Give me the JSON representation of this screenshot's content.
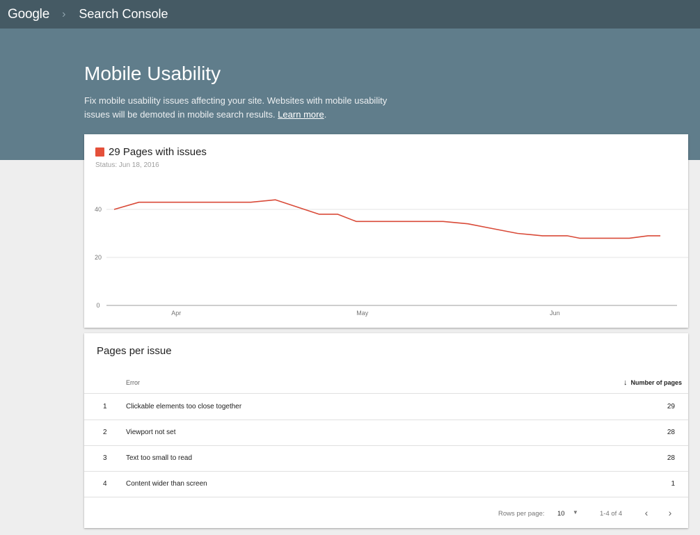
{
  "header": {
    "logo": "Google",
    "separator": "›",
    "product": "Search Console"
  },
  "hero": {
    "title": "Mobile Usability",
    "description": "Fix mobile usability issues affecting your site. Websites with mobile usability issues will be demoted in mobile search results.",
    "learn_more": "Learn more",
    "trailing": "."
  },
  "summary": {
    "legend_label": "29 Pages with issues",
    "status": "Status: Jun 18, 2016",
    "accent_color": "#e4503a"
  },
  "chart_data": {
    "type": "line",
    "title": "29 Pages with issues",
    "subtitle": "Status: Jun 18, 2016",
    "xlabel": "",
    "ylabel": "",
    "ylim": [
      0,
      50
    ],
    "y_ticks": [
      0,
      20,
      40
    ],
    "x_tick_labels": [
      "Apr",
      "May",
      "Jun"
    ],
    "grid": true,
    "series": [
      {
        "name": "Pages with issues",
        "color": "#d94a38",
        "x": [
          "Mar 22",
          "Mar 26",
          "Apr 5",
          "Apr 13",
          "Apr 17",
          "Apr 24",
          "Apr 27",
          "Apr 30",
          "May 7",
          "May 14",
          "May 18",
          "May 22",
          "May 26",
          "May 30",
          "Jun 3",
          "Jun 5",
          "Jun 9",
          "Jun 13",
          "Jun 16",
          "Jun 18"
        ],
        "values": [
          40,
          43,
          43,
          43,
          44,
          38,
          38,
          35,
          35,
          35,
          34,
          32,
          30,
          29,
          29,
          28,
          28,
          28,
          29,
          29
        ]
      }
    ]
  },
  "issues_table": {
    "title": "Pages per issue",
    "columns": {
      "error": "Error",
      "pages": "Number of pages",
      "sort_icon": "arrow-down-icon"
    },
    "rows": [
      {
        "index": "1",
        "error": "Clickable elements too close together",
        "pages": "29"
      },
      {
        "index": "2",
        "error": "Viewport not set",
        "pages": "28"
      },
      {
        "index": "3",
        "error": "Text too small to read",
        "pages": "28"
      },
      {
        "index": "4",
        "error": "Content wider than screen",
        "pages": "1"
      }
    ],
    "pagination": {
      "rows_per_page_label": "Rows per page:",
      "rows_per_page_value": "10",
      "range": "1-4 of 4",
      "prev_icon": "chevron-left-icon",
      "next_icon": "chevron-right-icon"
    }
  }
}
